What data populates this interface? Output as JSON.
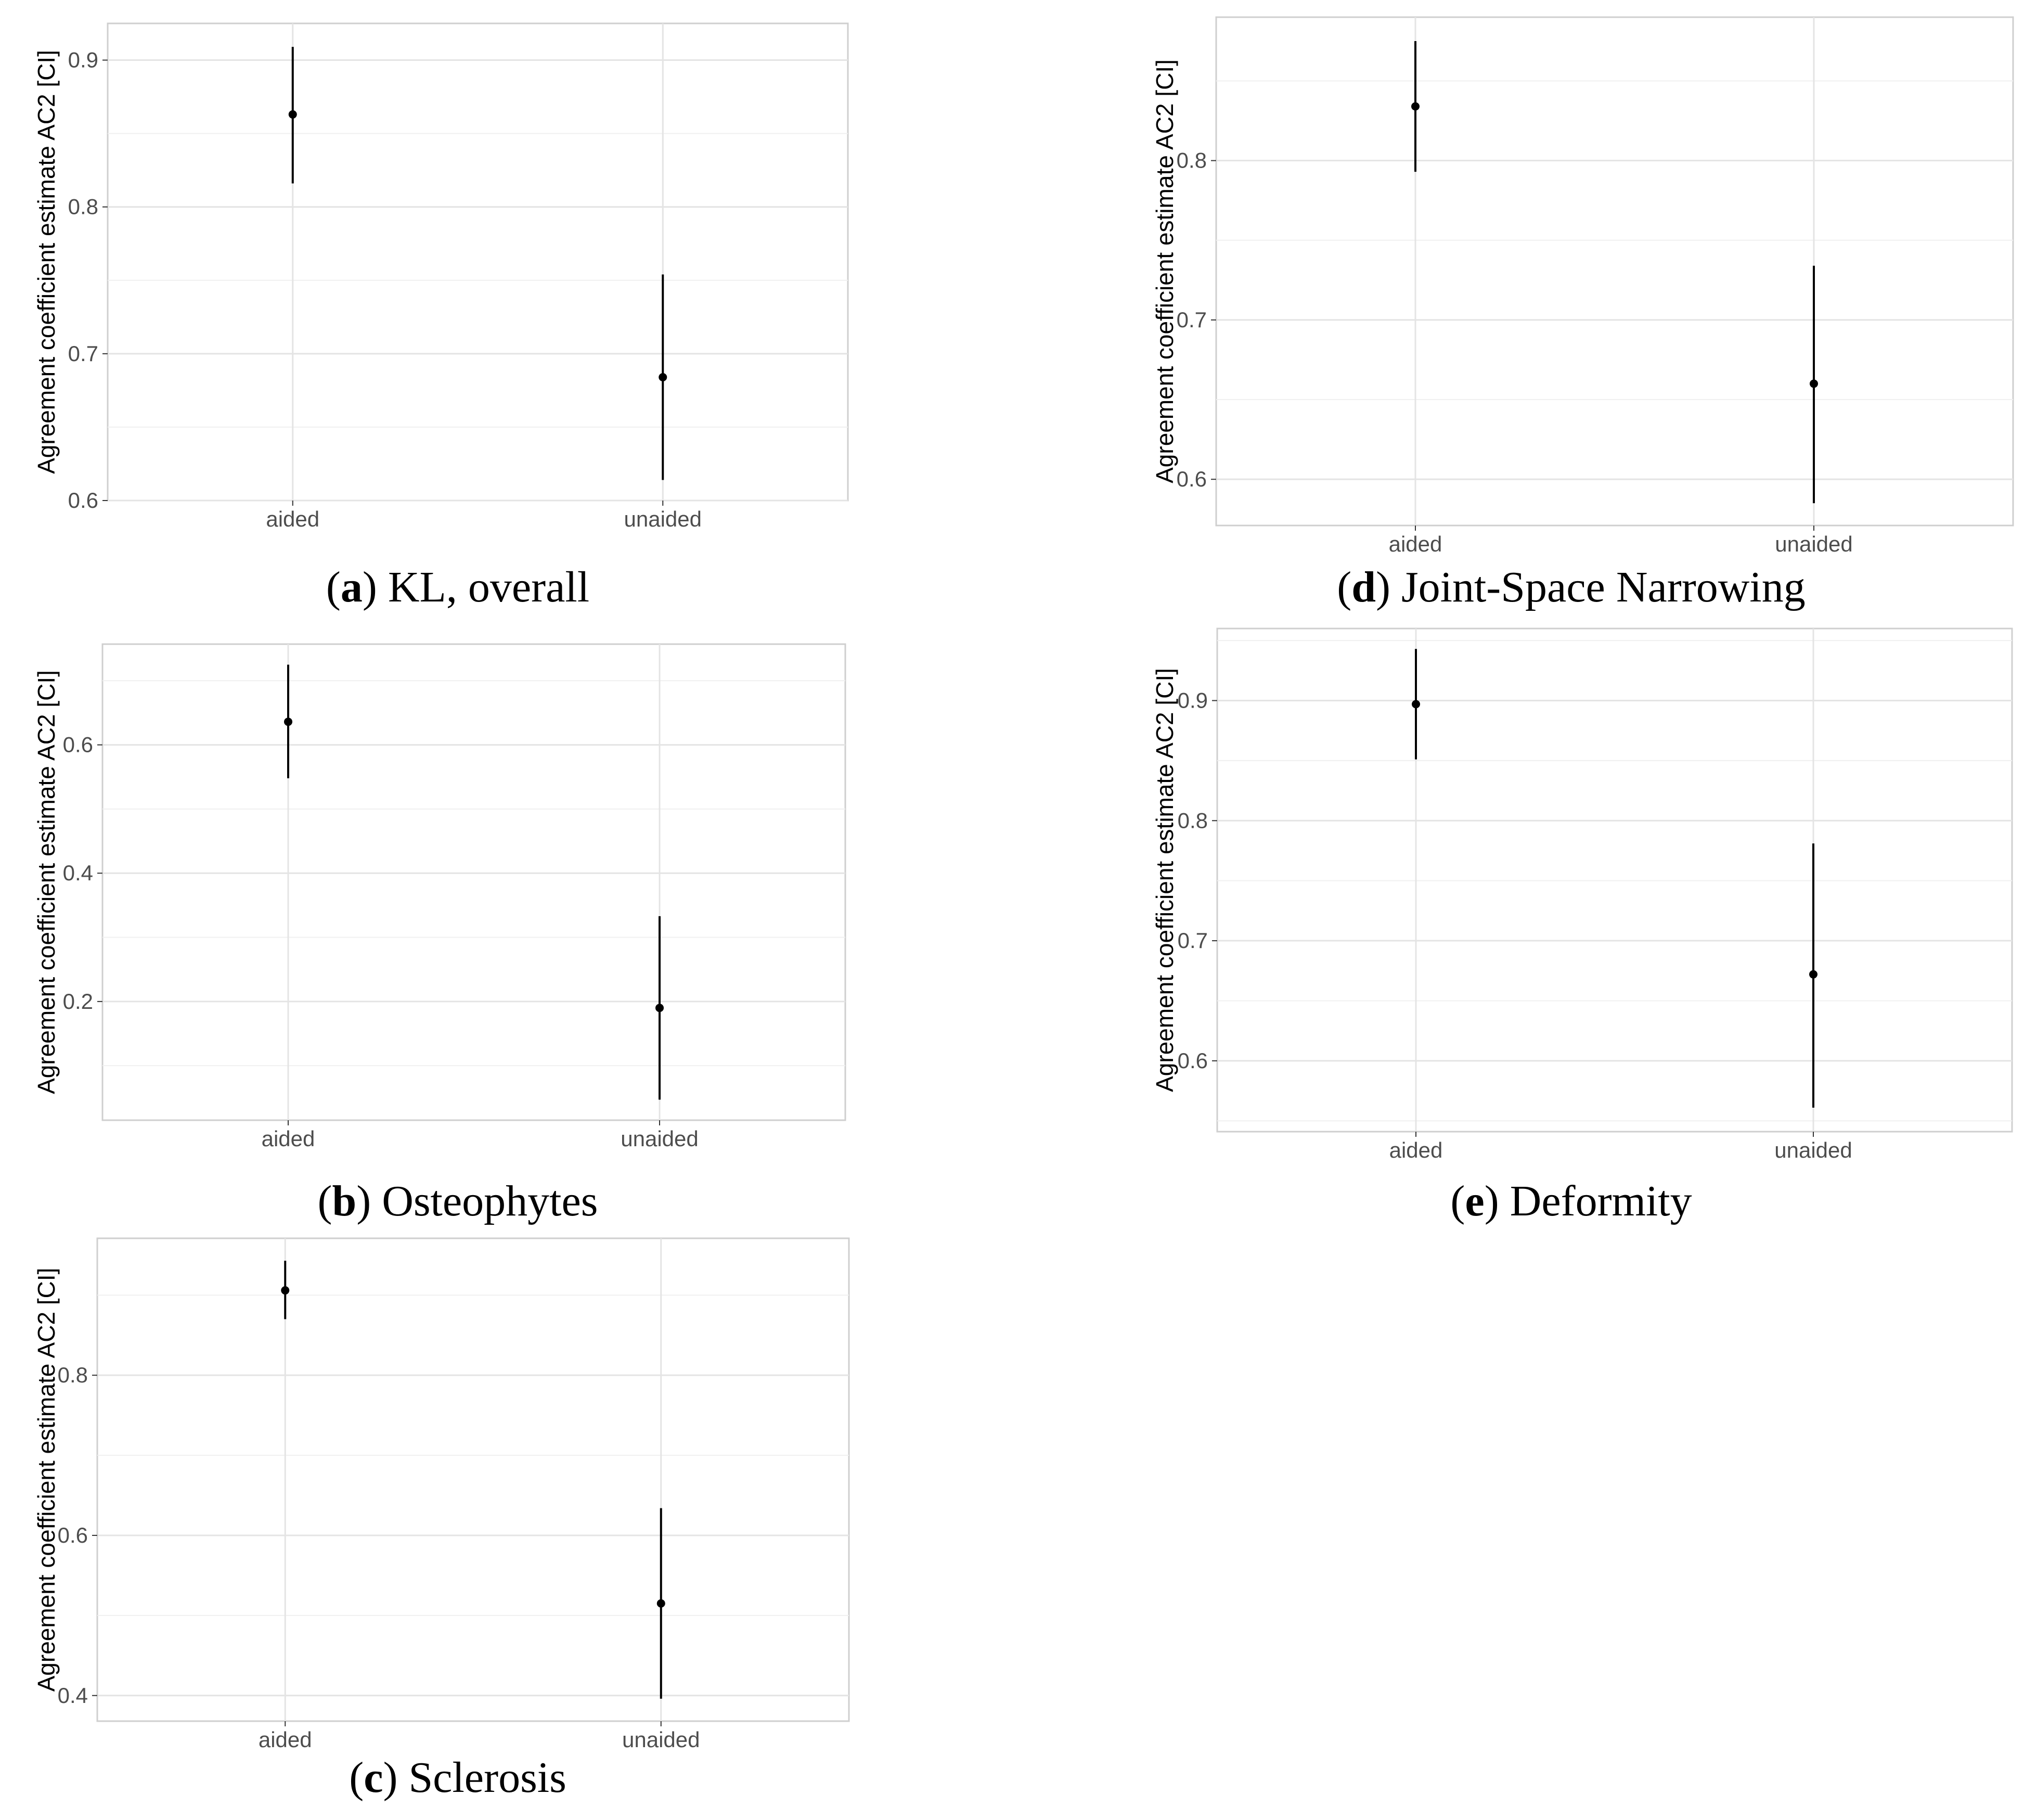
{
  "chart_data": [
    {
      "id": "a",
      "type": "errorbar",
      "caption_letter": "a",
      "caption_text": "KL, overall",
      "ylabel": "Agreement coefficient estimate AC2 [CI]",
      "categories": [
        "aided",
        "unaided"
      ],
      "points": [
        {
          "category": "aided",
          "estimate": 0.863,
          "lower": 0.816,
          "upper": 0.909
        },
        {
          "category": "unaided",
          "estimate": 0.684,
          "lower": 0.614,
          "upper": 0.754
        }
      ],
      "ylim": [
        0.6,
        0.925
      ],
      "yticks": [
        0.6,
        0.7,
        0.8,
        0.9
      ],
      "ytick_labels": [
        "0.6",
        "0.7",
        "0.8",
        "0.9"
      ],
      "grid": true
    },
    {
      "id": "b",
      "type": "errorbar",
      "caption_letter": "b",
      "caption_text": "Osteophytes",
      "ylabel": "Agreement coefficient estimate AC2 [CI]",
      "categories": [
        "aided",
        "unaided"
      ],
      "points": [
        {
          "category": "aided",
          "estimate": 0.636,
          "lower": 0.548,
          "upper": 0.725
        },
        {
          "category": "unaided",
          "estimate": 0.19,
          "lower": 0.047,
          "upper": 0.333
        }
      ],
      "ylim": [
        0.015,
        0.757
      ],
      "yticks": [
        0.2,
        0.4,
        0.6
      ],
      "ytick_labels": [
        "0.2",
        "0.4",
        "0.6"
      ],
      "grid": true
    },
    {
      "id": "c",
      "type": "errorbar",
      "caption_letter": "c",
      "caption_text": "Sclerosis",
      "ylabel": "Agreement coefficient estimate AC2 [CI]",
      "categories": [
        "aided",
        "unaided"
      ],
      "points": [
        {
          "category": "aided",
          "estimate": 0.906,
          "lower": 0.87,
          "upper": 0.943
        },
        {
          "category": "unaided",
          "estimate": 0.515,
          "lower": 0.396,
          "upper": 0.634
        }
      ],
      "ylim": [
        0.368,
        0.971
      ],
      "yticks": [
        0.4,
        0.6,
        0.8
      ],
      "ytick_labels": [
        "0.4",
        "0.6",
        "0.8"
      ],
      "grid": true
    },
    {
      "id": "d",
      "type": "errorbar",
      "caption_letter": "d",
      "caption_text": "Joint-Space Narrowing",
      "ylabel": "Agreement coefficient estimate AC2 [CI]",
      "categories": [
        "aided",
        "unaided"
      ],
      "points": [
        {
          "category": "aided",
          "estimate": 0.834,
          "lower": 0.793,
          "upper": 0.875
        },
        {
          "category": "unaided",
          "estimate": 0.66,
          "lower": 0.585,
          "upper": 0.734
        }
      ],
      "ylim": [
        0.571,
        0.89
      ],
      "yticks": [
        0.6,
        0.7,
        0.8
      ],
      "ytick_labels": [
        "0.6",
        "0.7",
        "0.8"
      ],
      "grid": true
    },
    {
      "id": "e",
      "type": "errorbar",
      "caption_letter": "e",
      "caption_text": "Deformity",
      "ylabel": "Agreement coefficient estimate AC2 [CI]",
      "categories": [
        "aided",
        "unaided"
      ],
      "points": [
        {
          "category": "aided",
          "estimate": 0.897,
          "lower": 0.851,
          "upper": 0.943
        },
        {
          "category": "unaided",
          "estimate": 0.672,
          "lower": 0.561,
          "upper": 0.781
        }
      ],
      "ylim": [
        0.541,
        0.96
      ],
      "yticks": [
        0.6,
        0.7,
        0.8,
        0.9
      ],
      "ytick_labels": [
        "0.6",
        "0.7",
        "0.8",
        "0.9"
      ],
      "grid": true
    }
  ]
}
